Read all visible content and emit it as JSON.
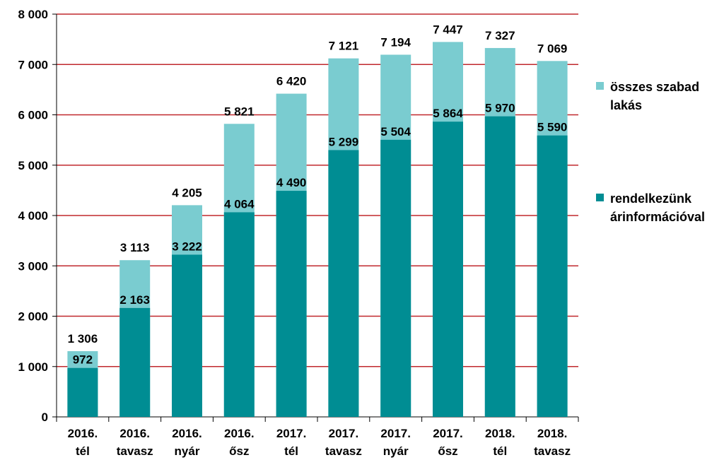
{
  "chart_data": {
    "type": "bar",
    "stacked": "overlay",
    "categories": [
      [
        "2016.",
        "tél"
      ],
      [
        "2016.",
        "tavasz"
      ],
      [
        "2016.",
        "nyár"
      ],
      [
        "2016.",
        "ősz"
      ],
      [
        "2017.",
        "tél"
      ],
      [
        "2017.",
        "tavasz"
      ],
      [
        "2017.",
        "nyár"
      ],
      [
        "2017.",
        "ősz"
      ],
      [
        "2018.",
        "tél"
      ],
      [
        "2018.",
        "tavasz"
      ]
    ],
    "series": [
      {
        "name": "összes szabad lakás",
        "color": "#7accd0",
        "values": [
          1306,
          3113,
          4205,
          5821,
          6420,
          7121,
          7194,
          7447,
          7327,
          7069
        ],
        "labels": [
          "1 306",
          "3 113",
          "4 205",
          "5 821",
          "6 420",
          "7 121",
          "7 194",
          "7 447",
          "7 327",
          "7 069"
        ]
      },
      {
        "name": "rendelkezünk árinformációval",
        "color": "#008d93",
        "values": [
          972,
          2163,
          3222,
          4064,
          4490,
          5299,
          5504,
          5864,
          5970,
          5590
        ],
        "labels": [
          "972",
          "2 163",
          "3 222",
          "4 064",
          "4 490",
          "5 299",
          "5 504",
          "5 864",
          "5 970",
          "5 590"
        ]
      }
    ],
    "ylim": [
      0,
      8000
    ],
    "yticks": [
      0,
      1000,
      2000,
      3000,
      4000,
      5000,
      6000,
      7000,
      8000
    ],
    "ytick_labels": [
      "0",
      "1 000",
      "2 000",
      "3 000",
      "4 000",
      "5 000",
      "6 000",
      "7 000",
      "8 000"
    ],
    "grid": true,
    "grid_color": "#c0282d",
    "legend_position": "right"
  },
  "legend": {
    "items": [
      {
        "lines": [
          "összes szabad",
          "lakás"
        ],
        "color": "#7accd0"
      },
      {
        "lines": [
          "rendelkezünk",
          "árinformációval"
        ],
        "color": "#008d93"
      }
    ]
  }
}
